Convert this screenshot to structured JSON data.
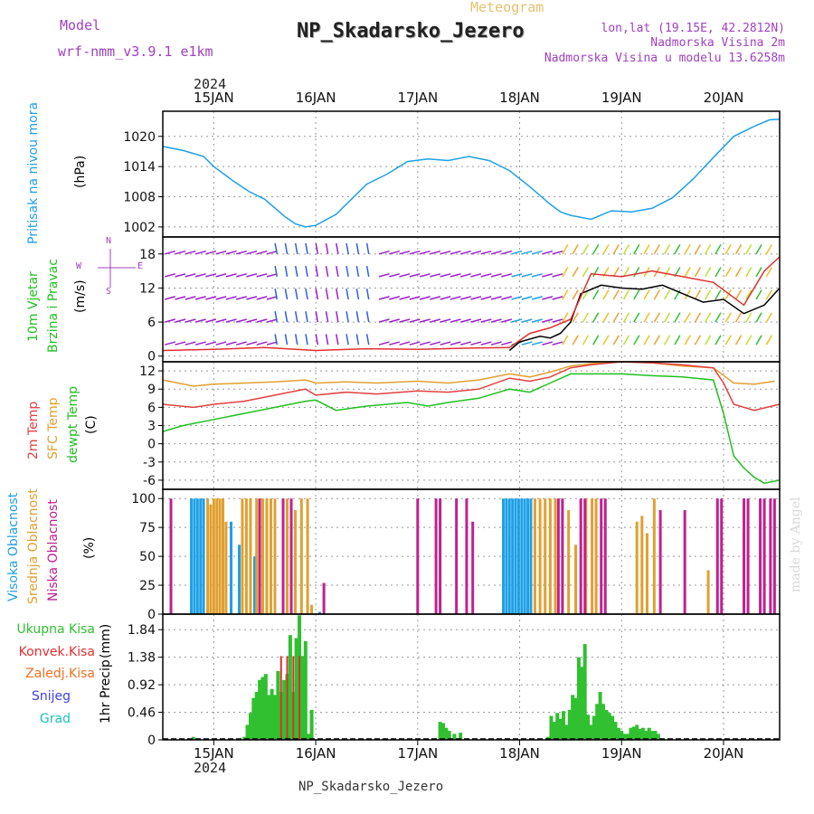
{
  "header": {
    "model_label": "Model",
    "model_name": "wrf-nmm_v3.9.1 e1km",
    "subtitle": "Meteogram",
    "title": "NP_Skadarsko_Jezero",
    "lonlat": "lon,lat (19.15E, 42.2812N)",
    "elevation": "Nadmorska Visina 2m",
    "model_elevation": "Nadmorska Visina u modelu 13.6258m",
    "footer_station": "NP_Skadarsko_Jezero",
    "watermark": "made by Angel"
  },
  "colors": {
    "pressure": "#1ea0e6",
    "wind_speed": "#000000",
    "gust": "#e03030",
    "temp2m": "#e04040",
    "sfc_temp": "#e0a030",
    "dewpoint": "#20c020",
    "high_cloud": "#1ea0e6",
    "mid_cloud": "#e0a030",
    "low_cloud": "#c02090",
    "precip": "#30c030",
    "convective": "#e03030",
    "frozen": "#f07020",
    "snow": "#4040e0",
    "graupel": "#20c0c0"
  },
  "chart_data": {
    "type": "line",
    "time_axis": {
      "year": "2024",
      "ticks": [
        "15JAN",
        "16JAN",
        "17JAN",
        "18JAN",
        "19JAN",
        "20JAN"
      ],
      "range_days": [
        -0.5,
        5.55
      ]
    },
    "panels": [
      {
        "id": "pressure",
        "label": "Pritisak na nivou mora",
        "unit": "(hPa)",
        "yticks": [
          1002,
          1008,
          1014,
          1020
        ],
        "ylim": [
          1000,
          1025
        ],
        "series": [
          {
            "color_key": "pressure",
            "x": [
              -0.5,
              -0.3,
              -0.1,
              0.0,
              0.2,
              0.35,
              0.5,
              0.7,
              0.8,
              0.9,
              1.0,
              1.2,
              1.35,
              1.5,
              1.7,
              1.9,
              2.1,
              2.3,
              2.5,
              2.7,
              2.9,
              3.1,
              3.3,
              3.4,
              3.5,
              3.7,
              3.9,
              4.1,
              4.3,
              4.5,
              4.7,
              4.9,
              5.1,
              5.3,
              5.45,
              5.55
            ],
            "y": [
              1018,
              1017.2,
              1016,
              1014,
              1011,
              1009,
              1007.5,
              1004,
              1002.6,
              1002,
              1002.3,
              1004.5,
              1007.5,
              1010.5,
              1012.5,
              1015,
              1015.5,
              1015.2,
              1016,
              1015.2,
              1013.2,
              1010,
              1006.5,
              1005,
              1004.3,
              1003.5,
              1005.2,
              1005,
              1005.7,
              1007.8,
              1011.5,
              1015.8,
              1020,
              1022,
              1023.3,
              1023.4
            ]
          }
        ]
      },
      {
        "id": "wind",
        "label": "10m Vjetar",
        "label2": "Brzina i Pravac",
        "unit": "(m/s)",
        "compass": [
          "W",
          "E",
          "N",
          "S"
        ],
        "yticks": [
          0,
          6,
          12,
          18
        ],
        "ylim": [
          -1,
          21
        ],
        "series": [
          {
            "name": "speed",
            "color_key": "wind_speed",
            "x": [
              2.9,
              3.0,
              3.2,
              3.3,
              3.4,
              3.5,
              3.6,
              3.8,
              4.0,
              4.2,
              4.4,
              4.6,
              4.8,
              5.0,
              5.2,
              5.4,
              5.55
            ],
            "y": [
              1.0,
              2.5,
              3.5,
              3.2,
              4.0,
              6.0,
              11.0,
              12.5,
              12.0,
              11.8,
              12.5,
              11.0,
              9.5,
              10.0,
              7.5,
              9.0,
              12.0
            ]
          },
          {
            "name": "gust",
            "color_key": "gust",
            "x": [
              -0.5,
              0.0,
              0.5,
              1.0,
              1.5,
              2.0,
              2.5,
              2.9,
              3.1,
              3.3,
              3.5,
              3.7,
              4.0,
              4.3,
              4.6,
              4.9,
              5.2,
              5.4,
              5.55
            ],
            "y": [
              1.0,
              1.2,
              1.5,
              1.0,
              1.3,
              1.2,
              1.4,
              1.5,
              4.0,
              5.0,
              6.5,
              14.5,
              14.0,
              15.0,
              14.0,
              13.0,
              9.0,
              15.0,
              17.5
            ]
          }
        ]
      },
      {
        "id": "temperature",
        "label": "2m Temp",
        "label2": "SFC Temp",
        "label3": "dewpt Temp",
        "unit": "(C)",
        "yticks": [
          -6,
          -3,
          0,
          3,
          6,
          9,
          12
        ],
        "ylim": [
          -7.5,
          13.5
        ],
        "series": [
          {
            "name": "sfc",
            "color_key": "sfc_temp",
            "x": [
              -0.5,
              -0.2,
              0.0,
              0.3,
              0.6,
              0.9,
              1.0,
              1.3,
              1.6,
              2.0,
              2.3,
              2.6,
              2.9,
              3.1,
              3.3,
              3.5,
              3.7,
              4.0,
              4.3,
              4.6,
              4.9,
              5.1,
              5.3,
              5.5
            ],
            "y": [
              10.5,
              9.5,
              9.8,
              10.0,
              10.2,
              10.5,
              10.0,
              10.2,
              10.0,
              10.3,
              10.0,
              10.5,
              11.5,
              11.0,
              11.8,
              12.8,
              13.2,
              13.5,
              13.3,
              12.8,
              12.5,
              10.0,
              9.8,
              10.3
            ]
          },
          {
            "name": "t2m",
            "color_key": "temp2m",
            "x": [
              -0.5,
              -0.2,
              0.0,
              0.3,
              0.6,
              0.9,
              1.0,
              1.3,
              1.6,
              2.0,
              2.3,
              2.6,
              2.9,
              3.1,
              3.3,
              3.5,
              3.7,
              4.0,
              4.3,
              4.6,
              4.9,
              5.0,
              5.1,
              5.3,
              5.55
            ],
            "y": [
              6.5,
              6.0,
              6.5,
              7.0,
              8.0,
              9.0,
              8.0,
              8.5,
              8.2,
              8.7,
              8.5,
              9.0,
              10.8,
              10.3,
              11.0,
              12.5,
              13.0,
              13.5,
              13.3,
              13.0,
              12.5,
              10.0,
              6.5,
              5.5,
              6.5
            ]
          },
          {
            "name": "dewpt",
            "color_key": "dewpoint",
            "x": [
              -0.5,
              -0.3,
              0.0,
              0.3,
              0.6,
              0.9,
              1.0,
              1.2,
              1.5,
              1.9,
              2.1,
              2.3,
              2.6,
              2.9,
              3.1,
              3.3,
              3.5,
              3.7,
              4.0,
              4.3,
              4.6,
              4.9,
              5.0,
              5.1,
              5.2,
              5.3,
              5.4,
              5.55
            ],
            "y": [
              2.0,
              3.0,
              4.0,
              5.0,
              6.0,
              7.0,
              7.2,
              5.5,
              6.2,
              6.8,
              6.2,
              6.8,
              7.5,
              9.0,
              8.5,
              10.0,
              11.5,
              11.5,
              11.5,
              11.2,
              11.0,
              10.5,
              5.0,
              -2.0,
              -4.0,
              -5.5,
              -6.5,
              -6.0
            ]
          }
        ]
      },
      {
        "id": "clouds",
        "label": "Visoka Oblacnost",
        "label2": "Srednja Oblacnost",
        "label3": "Niska Oblacnost",
        "unit": "(%)",
        "yticks": [
          0,
          25,
          50,
          75,
          100
        ],
        "ylim": [
          0,
          108
        ],
        "bars": [
          {
            "name": "high",
            "color_key": "high_cloud",
            "x": [
              -0.22,
              -0.19,
              -0.16,
              -0.13,
              -0.1,
              0.17,
              0.25,
              0.4,
              1.04,
              2.84,
              2.87,
              2.9,
              2.93,
              2.96,
              2.99,
              3.02,
              3.05,
              3.08,
              3.11
            ],
            "y": [
              100,
              100,
              100,
              100,
              100,
              80,
              60,
              50,
              2,
              100,
              100,
              100,
              100,
              100,
              100,
              100,
              100,
              100,
              100
            ]
          },
          {
            "name": "mid",
            "color_key": "mid_cloud",
            "x": [
              -0.06,
              -0.03,
              0.0,
              0.03,
              0.06,
              0.09,
              0.12,
              0.28,
              0.32,
              0.36,
              0.42,
              0.48,
              0.52,
              0.56,
              0.6,
              0.72,
              0.8,
              0.86,
              0.92,
              0.96,
              3.15,
              3.2,
              3.25,
              3.3,
              3.35,
              3.48,
              3.55,
              3.65,
              3.71,
              3.75,
              4.15,
              4.2,
              4.25,
              4.32,
              4.85
            ],
            "y": [
              100,
              95,
              100,
              100,
              100,
              100,
              80,
              100,
              100,
              100,
              100,
              100,
              100,
              100,
              100,
              100,
              90,
              100,
              100,
              8,
              100,
              100,
              100,
              100,
              100,
              90,
              60,
              100,
              100,
              100,
              80,
              85,
              70,
              100,
              38
            ]
          },
          {
            "name": "low",
            "color_key": "low_cloud",
            "x": [
              -0.42,
              0.45,
              0.68,
              0.76,
              1.08,
              2.0,
              2.18,
              2.22,
              2.38,
              2.48,
              2.54,
              3.38,
              3.42,
              3.6,
              3.64,
              3.8,
              3.84,
              4.38,
              4.62,
              4.94,
              4.98,
              5.2,
              5.24,
              5.36,
              5.4,
              5.46,
              5.5
            ],
            "y": [
              100,
              100,
              100,
              100,
              27,
              100,
              100,
              100,
              100,
              100,
              80,
              100,
              100,
              100,
              100,
              100,
              100,
              90,
              90,
              100,
              100,
              100,
              100,
              100,
              100,
              100,
              100
            ]
          }
        ]
      },
      {
        "id": "precip",
        "label": "1hr Precip",
        "unit": "(mm)",
        "legend": [
          "Ukupna Kisa",
          "Konvek.Kisa",
          "Zaledj.Kisa",
          "Snijeg",
          "Grad"
        ],
        "yticks": [
          0,
          0.46,
          0.92,
          1.38,
          1.84
        ],
        "ylim": [
          0,
          2.1
        ],
        "bars": [
          {
            "name": "total",
            "color_key": "precip",
            "x": [
              -0.2,
              0.3,
              0.33,
              0.36,
              0.39,
              0.42,
              0.45,
              0.48,
              0.51,
              0.54,
              0.57,
              0.6,
              0.63,
              0.66,
              0.69,
              0.72,
              0.75,
              0.78,
              0.81,
              0.84,
              0.87,
              0.9,
              0.93,
              0.96,
              2.22,
              2.25,
              2.28,
              2.31,
              2.36,
              2.42,
              3.28,
              3.31,
              3.34,
              3.37,
              3.4,
              3.43,
              3.46,
              3.49,
              3.52,
              3.55,
              3.58,
              3.61,
              3.64,
              3.67,
              3.7,
              3.73,
              3.76,
              3.79,
              3.82,
              3.85,
              3.88,
              3.91,
              3.94,
              3.97,
              4.0,
              4.03,
              4.06,
              4.09,
              4.12,
              4.15,
              4.18,
              4.21,
              4.24,
              4.27,
              4.3,
              4.33,
              4.36
            ],
            "y": [
              0.05,
              0.05,
              0.25,
              0.45,
              0.7,
              0.8,
              1.0,
              1.05,
              1.1,
              0.75,
              0.85,
              0.75,
              1.15,
              0.8,
              1.0,
              1.1,
              1.75,
              0.8,
              1.7,
              2.08,
              1.4,
              1.65,
              0.1,
              0.5,
              0.3,
              0.28,
              0.2,
              0.15,
              0.1,
              0.12,
              0.05,
              0.4,
              0.3,
              0.45,
              0.35,
              0.48,
              0.25,
              0.5,
              0.75,
              0.7,
              1.38,
              1.22,
              1.6,
              0.42,
              0.25,
              0.4,
              0.6,
              0.8,
              0.6,
              0.5,
              0.45,
              0.4,
              0.3,
              0.2,
              0.15,
              0.1,
              0.1,
              0.2,
              0.22,
              0.25,
              0.18,
              0.2,
              0.15,
              0.2,
              0.15,
              0.15,
              0.1
            ]
          }
        ]
      }
    ]
  }
}
